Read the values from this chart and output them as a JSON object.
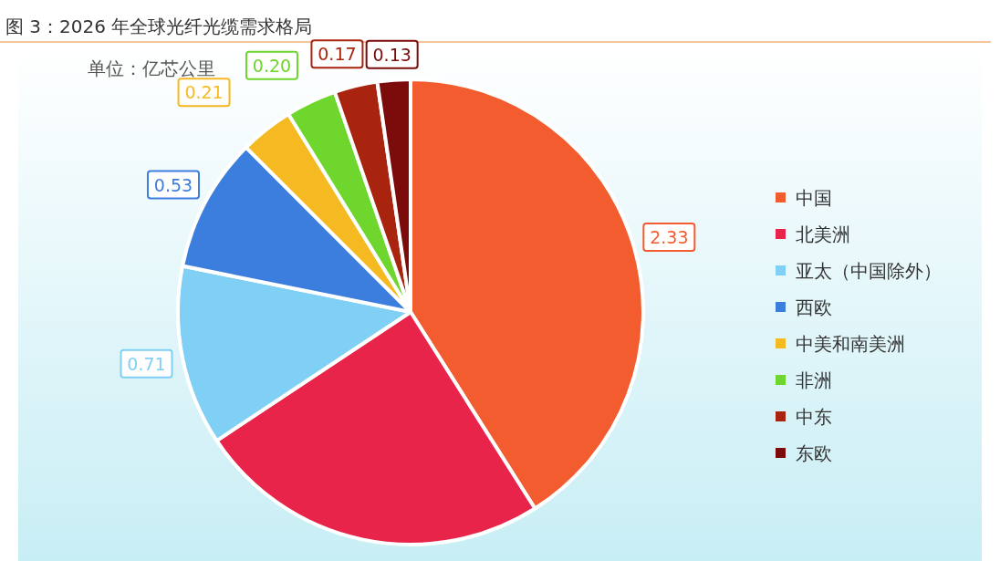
{
  "chart_data": {
    "type": "pie",
    "title": "图 3：2026 年全球光纤光缆需求格局",
    "subtitle": "单位：亿芯公里",
    "categories": [
      "中国",
      "北美洲",
      "亚太（中国除外）",
      "西欧",
      "中美和南美洲",
      "非洲",
      "中东",
      "东欧"
    ],
    "values": [
      2.33,
      1.4,
      0.71,
      0.53,
      0.21,
      0.2,
      0.17,
      0.13
    ],
    "value_labels": [
      "2.33",
      null,
      "0.71",
      "0.53",
      "0.21",
      "0.20",
      "0.17",
      "0.13"
    ],
    "colors": [
      "#f25c2e",
      "#e8244b",
      "#80d0f5",
      "#3c7ede",
      "#f5b921",
      "#6ed62c",
      "#a8240f",
      "#7c0b0b"
    ],
    "legend": "right"
  }
}
